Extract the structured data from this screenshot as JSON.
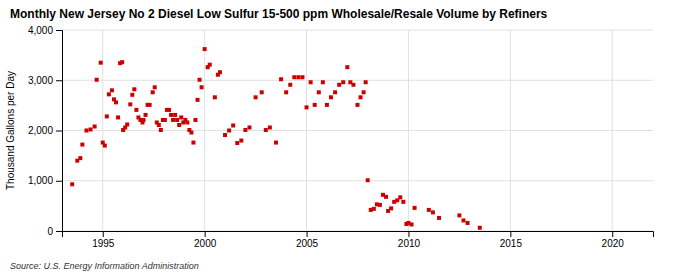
{
  "chart_data": {
    "type": "scatter",
    "title": "Monthly New Jersey No 2 Diesel Low Sulfur 15-500 ppm Wholesale/Resale Volume by Refiners",
    "ylabel": "Thousand Gallons per Day",
    "source": "Source: U.S. Energy Information Administration",
    "color": "#cc0000",
    "marker": "square",
    "grid": true,
    "xlim": [
      1993.0,
      2022.0
    ],
    "ylim": [
      0,
      4000
    ],
    "xticks": [
      1995,
      2000,
      2005,
      2010,
      2015,
      2020
    ],
    "yticks": [
      0,
      {
        "value": 1000,
        "label": "1,000"
      },
      {
        "value": 2000,
        "label": "2,000"
      },
      {
        "value": 3000,
        "label": "3,000"
      },
      {
        "value": 4000,
        "label": "4,000"
      }
    ],
    "x": [
      1993.5,
      1993.75,
      1993.9,
      1994.0,
      1994.2,
      1994.4,
      1994.6,
      1994.7,
      1994.9,
      1995.0,
      1995.1,
      1995.2,
      1995.3,
      1995.45,
      1995.55,
      1995.65,
      1995.75,
      1995.85,
      1995.95,
      1996.0,
      1996.1,
      1996.2,
      1996.35,
      1996.45,
      1996.55,
      1996.65,
      1996.75,
      1996.85,
      1996.95,
      1997.0,
      1997.1,
      1997.2,
      1997.3,
      1997.45,
      1997.55,
      1997.65,
      1997.75,
      1997.85,
      1997.95,
      1998.05,
      1998.15,
      1998.25,
      1998.35,
      1998.45,
      1998.55,
      1998.65,
      1998.75,
      1998.85,
      1998.95,
      1999.05,
      1999.15,
      1999.25,
      1999.35,
      1999.45,
      1999.55,
      1999.65,
      1999.75,
      1999.85,
      2000.0,
      2000.15,
      2000.25,
      2000.5,
      2000.65,
      2000.75,
      2001.0,
      2001.2,
      2001.4,
      2001.6,
      2001.8,
      2002.0,
      2002.2,
      2002.5,
      2002.8,
      2003.0,
      2003.2,
      2003.5,
      2003.75,
      2004.0,
      2004.2,
      2004.4,
      2004.6,
      2004.8,
      2005.0,
      2005.2,
      2005.4,
      2005.6,
      2005.8,
      2006.0,
      2006.2,
      2006.4,
      2006.6,
      2006.8,
      2007.0,
      2007.15,
      2007.3,
      2007.5,
      2007.65,
      2007.8,
      2007.9,
      2008.0,
      2008.15,
      2008.3,
      2008.45,
      2008.6,
      2008.75,
      2008.9,
      2009.0,
      2009.15,
      2009.3,
      2009.45,
      2009.6,
      2009.75,
      2009.9,
      2010.0,
      2010.15,
      2010.3,
      2011.0,
      2011.2,
      2011.5,
      2012.5,
      2012.7,
      2012.9,
      2013.5
    ],
    "values": [
      930,
      1400,
      1450,
      1720,
      2000,
      2020,
      2080,
      3010,
      3350,
      1760,
      1700,
      2280,
      2720,
      2800,
      2620,
      2560,
      2260,
      3340,
      3360,
      2010,
      2060,
      2120,
      2520,
      2710,
      2820,
      2410,
      2260,
      2210,
      2160,
      2210,
      2310,
      2510,
      2510,
      2760,
      2860,
      2160,
      2110,
      2010,
      2210,
      2210,
      2410,
      2410,
      2310,
      2210,
      2310,
      2210,
      2110,
      2260,
      2160,
      2210,
      2160,
      2010,
      1960,
      1760,
      2210,
      2610,
      3010,
      2860,
      3620,
      3260,
      3310,
      2660,
      3110,
      3160,
      1910,
      2000,
      2100,
      1750,
      1800,
      2010,
      2060,
      2660,
      2760,
      2010,
      2060,
      1760,
      3020,
      2760,
      2910,
      3060,
      3060,
      3060,
      2460,
      2960,
      2510,
      2760,
      2960,
      2510,
      2660,
      2760,
      2910,
      2960,
      3260,
      2960,
      2910,
      2510,
      2660,
      2760,
      2960,
      1010,
      420,
      440,
      530,
      520,
      720,
      680,
      400,
      450,
      580,
      610,
      670,
      580,
      140,
      160,
      130,
      460,
      420,
      370,
      260,
      310,
      210,
      160,
      65
    ]
  }
}
